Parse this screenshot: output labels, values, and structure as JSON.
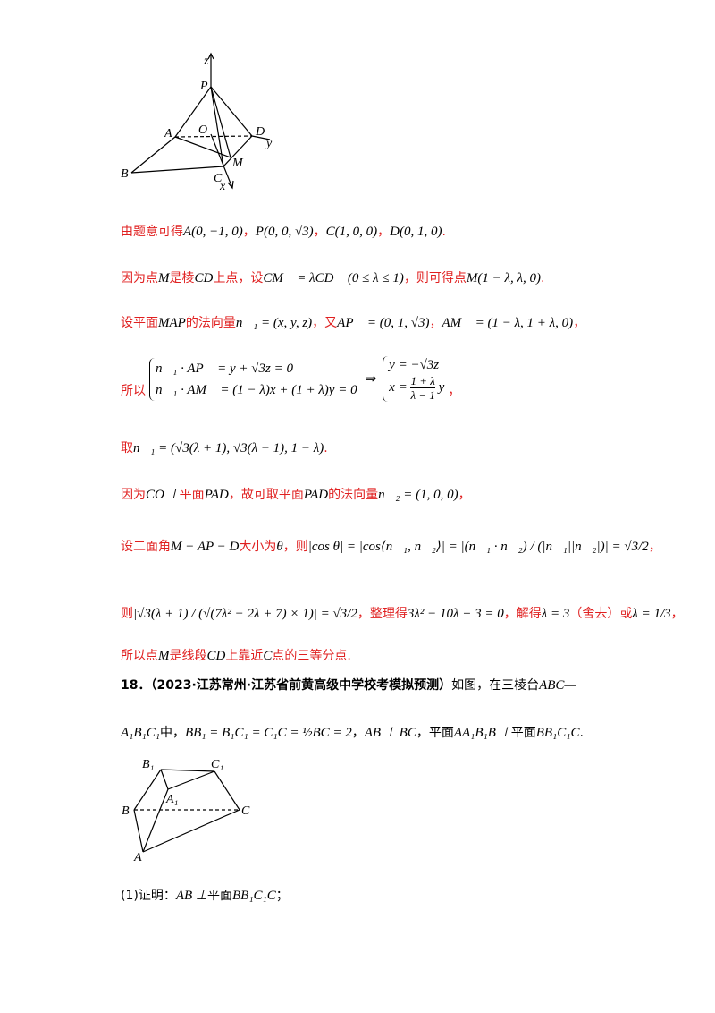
{
  "figure1": {
    "labels": [
      "z",
      "P",
      "A",
      "O",
      "D",
      "y",
      "B",
      "C",
      "M",
      "x"
    ]
  },
  "solution": {
    "lines": [
      [
        "由题意可得",
        "A(0, −1, 0)",
        "，",
        "P(0, 0, √3)",
        "，",
        "C(1, 0, 0)",
        "，",
        "D(0, 1, 0)",
        "."
      ],
      [
        "因为点",
        "M",
        "是棱",
        "CD",
        "上点，设",
        "CM⃗ = λCD⃗ (0 ≤ λ ≤ 1)",
        "，则可得点",
        "M(1 − λ, λ, 0)",
        "."
      ],
      [
        "设平面",
        "MAP",
        "的法向量",
        "n⃗₁ = (x, y, z)",
        "，又",
        "AP⃗ = (0, 1, √3)",
        "，",
        "AM⃗ = (1 − λ, 1 + λ, 0)",
        "，"
      ]
    ],
    "system": {
      "lead": "所以",
      "left": [
        "n⃗₁ · AP⃗ = y + √3z = 0",
        "n⃗₁ · AM⃗ = (1 − λ)x + (1 + λ)y = 0"
      ],
      "arrow": "⇒",
      "right_top": "y = −√3z",
      "right_bottom": {
        "lhs": "x =",
        "num": "1 + λ",
        "den": "λ − 1",
        "rhs": "y"
      },
      "tail": "，"
    },
    "lines2": [
      [
        "取",
        "n⃗₁ = (√3(λ + 1), √3(λ − 1), 1 − λ)",
        "."
      ],
      [
        "因为",
        "CO ⊥",
        "平面",
        "PAD",
        "，故可取平面",
        "PAD",
        "的法向量",
        "n⃗₂ = (1, 0, 0)",
        "，"
      ],
      [
        "设二面角",
        "M − AP − D",
        "大小为",
        "θ",
        "，则",
        "|cos θ| = |cos⟨n⃗₁, n⃗₂⟩| = |(n⃗₁ · n⃗₂) / (|n⃗₁||n⃗₂|)| = √3/2",
        "，"
      ],
      [
        "则",
        "|√3(λ + 1) / (√(7λ² − 2λ + 7) × 1)| = √3/2",
        "，整理得",
        "3λ² − 10λ + 3 = 0",
        "，解得",
        "λ = 3",
        "（舍去）或",
        "λ = 1/3",
        "，"
      ],
      [
        "所以点",
        "M",
        "是线段",
        "CD",
        "上靠近",
        "C",
        "点的三等分点."
      ]
    ]
  },
  "problem": {
    "number": "18．",
    "source": "（2023·江苏常州·江苏省前黄高级中学校考模拟预测）",
    "line1": [
      "如图，在三棱台",
      "ABC—"
    ],
    "line2": [
      "",
      "A₁B₁C₁"
    ],
    "line2b": [
      "中，",
      "BB₁ = B₁C₁ = C₁C = ½BC = 2",
      "，",
      "AB ⊥ BC",
      "，平面",
      "AA₁B₁B ⊥",
      "平面",
      "BB₁C₁C",
      "."
    ],
    "figure2": {
      "labels": [
        "B₁",
        "C₁",
        "A₁",
        "B",
        "C",
        "A"
      ]
    },
    "part1": [
      "(1)证明：",
      "AB ⊥",
      "平面",
      "BB₁C₁C",
      "；"
    ]
  }
}
